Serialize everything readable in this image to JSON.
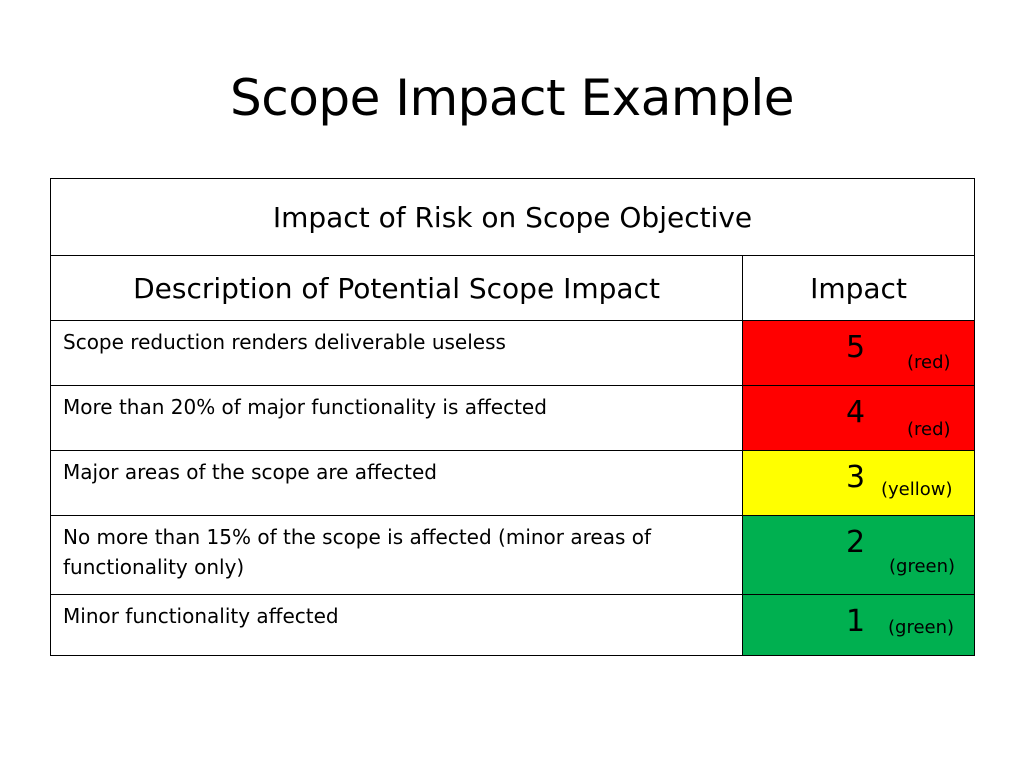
{
  "slide": {
    "title": "Scope Impact Example"
  },
  "table": {
    "main_header": "Impact of Risk on Scope Objective",
    "column_headers": {
      "description": "Description of Potential Scope Impact",
      "impact": "Impact"
    },
    "rows": [
      {
        "description": "Scope reduction renders deliverable useless",
        "score": "5",
        "color_word": "(red)",
        "color": "#ff0000"
      },
      {
        "description": "More than 20% of major functionality is affected",
        "score": "4",
        "color_word": "(red)",
        "color": "#ff0000"
      },
      {
        "description": "Major areas of the scope are affected",
        "score": "3",
        "color_word": "(yellow)",
        "color": "#ffff00"
      },
      {
        "description": "No more than 15% of the scope is affected (minor areas of functionality only)",
        "score": "2",
        "color_word": "(green)",
        "color": "#00b050"
      },
      {
        "description": "Minor functionality affected",
        "score": "1",
        "color_word": "(green)",
        "color": "#00b050"
      }
    ]
  }
}
